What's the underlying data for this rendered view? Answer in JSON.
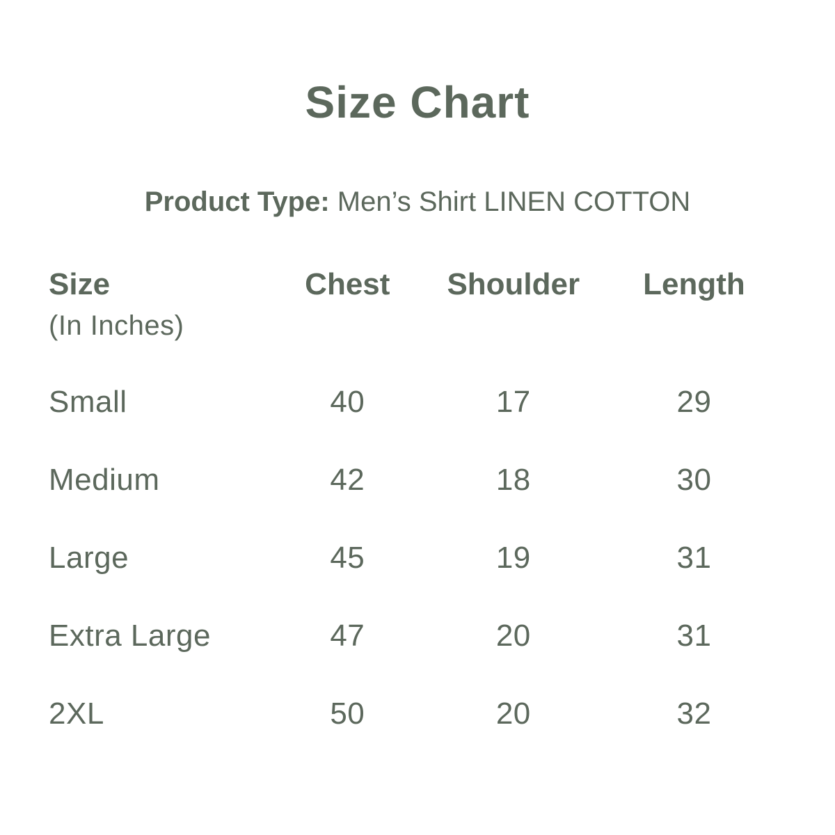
{
  "title": "Size Chart",
  "product_type": {
    "label": "Product Type:",
    "value": "Men’s Shirt LINEN COTTON"
  },
  "table": {
    "header": {
      "size": "Size",
      "size_note": "(In Inches)",
      "chest": "Chest",
      "shoulder": "Shoulder",
      "length": "Length"
    },
    "rows": [
      {
        "size": "Small",
        "chest": "40",
        "shoulder": "17",
        "length": "29"
      },
      {
        "size": "Medium",
        "chest": "42",
        "shoulder": "18",
        "length": "30"
      },
      {
        "size": "Large",
        "chest": "45",
        "shoulder": "19",
        "length": "31"
      },
      {
        "size": "Extra Large",
        "chest": "47",
        "shoulder": "20",
        "length": "31"
      },
      {
        "size": "2XL",
        "chest": "50",
        "shoulder": "20",
        "length": "32"
      }
    ]
  },
  "colors": {
    "text": "#5c685c",
    "background": "#ffffff"
  },
  "chart_data": {
    "type": "table",
    "title": "Size Chart",
    "subtitle": "Product Type: Men’s Shirt LINEN COTTON",
    "units": "inches",
    "columns": [
      "Size (In Inches)",
      "Chest",
      "Shoulder",
      "Length"
    ],
    "rows": [
      [
        "Small",
        40,
        17,
        29
      ],
      [
        "Medium",
        42,
        18,
        30
      ],
      [
        "Large",
        45,
        19,
        31
      ],
      [
        "Extra Large",
        47,
        20,
        31
      ],
      [
        "2XL",
        50,
        20,
        32
      ]
    ]
  }
}
